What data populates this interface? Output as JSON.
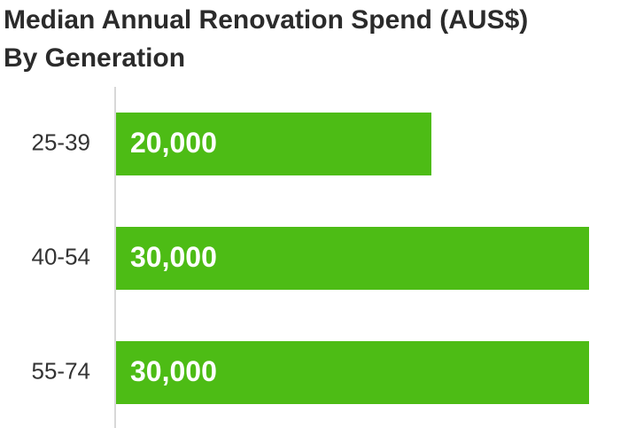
{
  "chart_data": {
    "type": "bar",
    "orientation": "horizontal",
    "title": "Median Annual Renovation Spend (AUS$)",
    "subtitle": "By Generation",
    "categories": [
      "25-39",
      "40-54",
      "55-74"
    ],
    "values": [
      20000,
      30000,
      30000
    ],
    "value_labels": [
      "20,000",
      "30,000",
      "30,000"
    ],
    "color": "#4dbc15"
  }
}
